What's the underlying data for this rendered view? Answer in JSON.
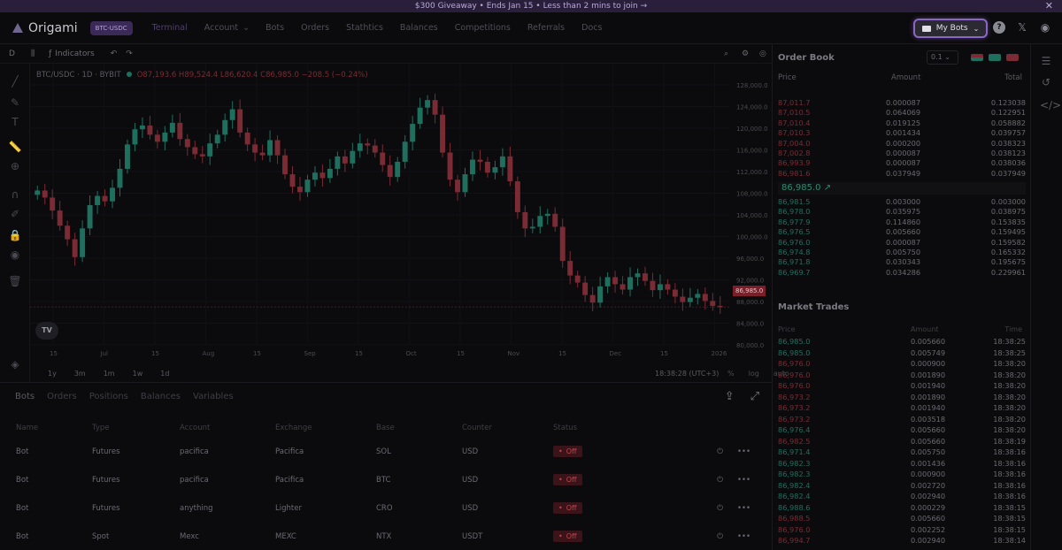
{
  "banner": {
    "text": "$300 Giveaway • Ends Jan 15 • Less than 2 mins to join →",
    "close": "✕"
  },
  "nav": {
    "logo": "Origami",
    "pair": "BTC-USDC",
    "items": [
      "Terminal",
      "Account",
      "Bots",
      "Orders",
      "Stathtics",
      "Balances",
      "Competitions",
      "Referrals",
      "Docs"
    ],
    "my_bots": "My Bots"
  },
  "toolbar": {
    "interval": "D",
    "indicators": "Indicators"
  },
  "legend": {
    "symbol": "BTC/USDC · 1D · BYBIT",
    "ohlc": "O87,193.6 H89,524.4 L86,620.4 C86,985.0 −208.5 (−0.24%)"
  },
  "chart_data": {
    "type": "candlestick",
    "y_ticks": [
      "128,000.0",
      "124,000.0",
      "120,000.0",
      "116,000.0",
      "112,000.0",
      "108,000.0",
      "104,000.0",
      "100,000.0",
      "96,000.0",
      "92,000.0",
      "88,000.0",
      "84,000.0",
      "80,000.0"
    ],
    "x_ticks": [
      "15",
      "Jul",
      "15",
      "Aug",
      "15",
      "Sep",
      "15",
      "Oct",
      "15",
      "Nov",
      "15",
      "Dec",
      "15",
      "2026"
    ],
    "ylim": [
      80000,
      128000
    ],
    "last_price": "86,985.0",
    "closes": [
      108500,
      107200,
      104800,
      102000,
      99500,
      96200,
      101500,
      105800,
      107500,
      106500,
      109000,
      112500,
      117000,
      119800,
      120500,
      118800,
      117500,
      119200,
      121000,
      118000,
      116500,
      115200,
      114800,
      117200,
      118800,
      121500,
      123500,
      119200,
      117000,
      115500,
      115000,
      117800,
      115000,
      111500,
      109200,
      108200,
      110500,
      111800,
      110800,
      112500,
      114800,
      113500,
      115800,
      117200,
      116800,
      115500,
      113200,
      111000,
      113800,
      117500,
      120800,
      123800,
      125200,
      122500,
      115500,
      110500,
      108200,
      111500,
      114200,
      113800,
      111800,
      112800,
      114800,
      110200,
      104500,
      101500,
      101800,
      103800,
      104200,
      101800,
      95500,
      92800,
      91500,
      89200,
      87800,
      90800,
      92500,
      91200,
      90200,
      92500,
      93200,
      91800,
      90100,
      91200,
      90200,
      88900,
      87900,
      88700,
      89400,
      88100,
      87200,
      86985
    ]
  },
  "range": {
    "items": [
      "1y",
      "3m",
      "1m",
      "1w",
      "1d"
    ],
    "time": "18:38:28 (UTC+3)",
    "opts": [
      "%",
      "log",
      "auto"
    ]
  },
  "bottom": {
    "tabs": [
      "Bots",
      "Orders",
      "Positions",
      "Balances",
      "Variables"
    ],
    "columns": [
      "Name",
      "Type",
      "Account",
      "Exchange",
      "Base",
      "Counter",
      "Status"
    ],
    "rows": [
      [
        "Bot",
        "Futures",
        "pacifica",
        "Pacifica",
        "SOL",
        "USD",
        "Off"
      ],
      [
        "Bot",
        "Futures",
        "pacifica",
        "Pacifica",
        "BTC",
        "USD",
        "Off"
      ],
      [
        "Bot",
        "Futures",
        "anything",
        "Lighter",
        "CRO",
        "USD",
        "Off"
      ],
      [
        "Bot",
        "Spot",
        "Mexc",
        "MEXC",
        "NTX",
        "USDT",
        "Off"
      ]
    ]
  },
  "orderbook": {
    "title": "Order Book",
    "step": "0.1",
    "headers": [
      "Price",
      "Amount",
      "Total"
    ],
    "asks": [
      [
        "87,011.7",
        "0.000087",
        "0.123038"
      ],
      [
        "87,010.5",
        "0.064069",
        "0.122951"
      ],
      [
        "87,010.4",
        "0.019125",
        "0.058882"
      ],
      [
        "87,010.3",
        "0.001434",
        "0.039757"
      ],
      [
        "87,004.0",
        "0.000200",
        "0.038323"
      ],
      [
        "87,002.8",
        "0.000087",
        "0.038123"
      ],
      [
        "86,993.9",
        "0.000087",
        "0.038036"
      ],
      [
        "86,981.6",
        "0.037949",
        "0.037949"
      ]
    ],
    "mid": "86,985.0 ↗",
    "bids": [
      [
        "86,981.5",
        "0.003000",
        "0.003000"
      ],
      [
        "86,978.0",
        "0.035975",
        "0.038975"
      ],
      [
        "86,977.9",
        "0.114860",
        "0.153835"
      ],
      [
        "86,976.5",
        "0.005660",
        "0.159495"
      ],
      [
        "86,976.0",
        "0.000087",
        "0.159582"
      ],
      [
        "86,974.8",
        "0.005750",
        "0.165332"
      ],
      [
        "86,971.8",
        "0.030343",
        "0.195675"
      ],
      [
        "86,969.7",
        "0.034286",
        "0.229961"
      ]
    ]
  },
  "trades": {
    "title": "Market Trades",
    "headers": [
      "Price",
      "Amount",
      "Time"
    ],
    "rows": [
      [
        "86,985.0",
        "0.005660",
        "18:38:25",
        "up"
      ],
      [
        "86,985.0",
        "0.005749",
        "18:38:25",
        "up"
      ],
      [
        "86,976.0",
        "0.000900",
        "18:38:20",
        "dn"
      ],
      [
        "86,976.0",
        "0.001890",
        "18:38:20",
        "dn"
      ],
      [
        "86,976.0",
        "0.001940",
        "18:38:20",
        "dn"
      ],
      [
        "86,973.2",
        "0.001890",
        "18:38:20",
        "dn"
      ],
      [
        "86,973.2",
        "0.001940",
        "18:38:20",
        "dn"
      ],
      [
        "86,973.2",
        "0.003518",
        "18:38:20",
        "dn"
      ],
      [
        "86,976.4",
        "0.005660",
        "18:38:20",
        "up"
      ],
      [
        "86,982.5",
        "0.005660",
        "18:38:19",
        "dn"
      ],
      [
        "86,971.4",
        "0.005750",
        "18:38:16",
        "up"
      ],
      [
        "86,982.3",
        "0.001436",
        "18:38:16",
        "up"
      ],
      [
        "86,982.3",
        "0.000900",
        "18:38:16",
        "up"
      ],
      [
        "86,982.4",
        "0.002720",
        "18:38:16",
        "up"
      ],
      [
        "86,982.4",
        "0.002940",
        "18:38:16",
        "up"
      ],
      [
        "86,988.6",
        "0.000229",
        "18:38:15",
        "up"
      ],
      [
        "86,988.5",
        "0.005660",
        "18:38:15",
        "dn"
      ],
      [
        "86,976.0",
        "0.002252",
        "18:38:15",
        "dn"
      ],
      [
        "86,994.7",
        "0.002940",
        "18:38:14",
        "dn"
      ]
    ]
  },
  "colors": {
    "up": "#1f6f5f",
    "down": "#7a2b33",
    "accent": "#8a66c6"
  }
}
